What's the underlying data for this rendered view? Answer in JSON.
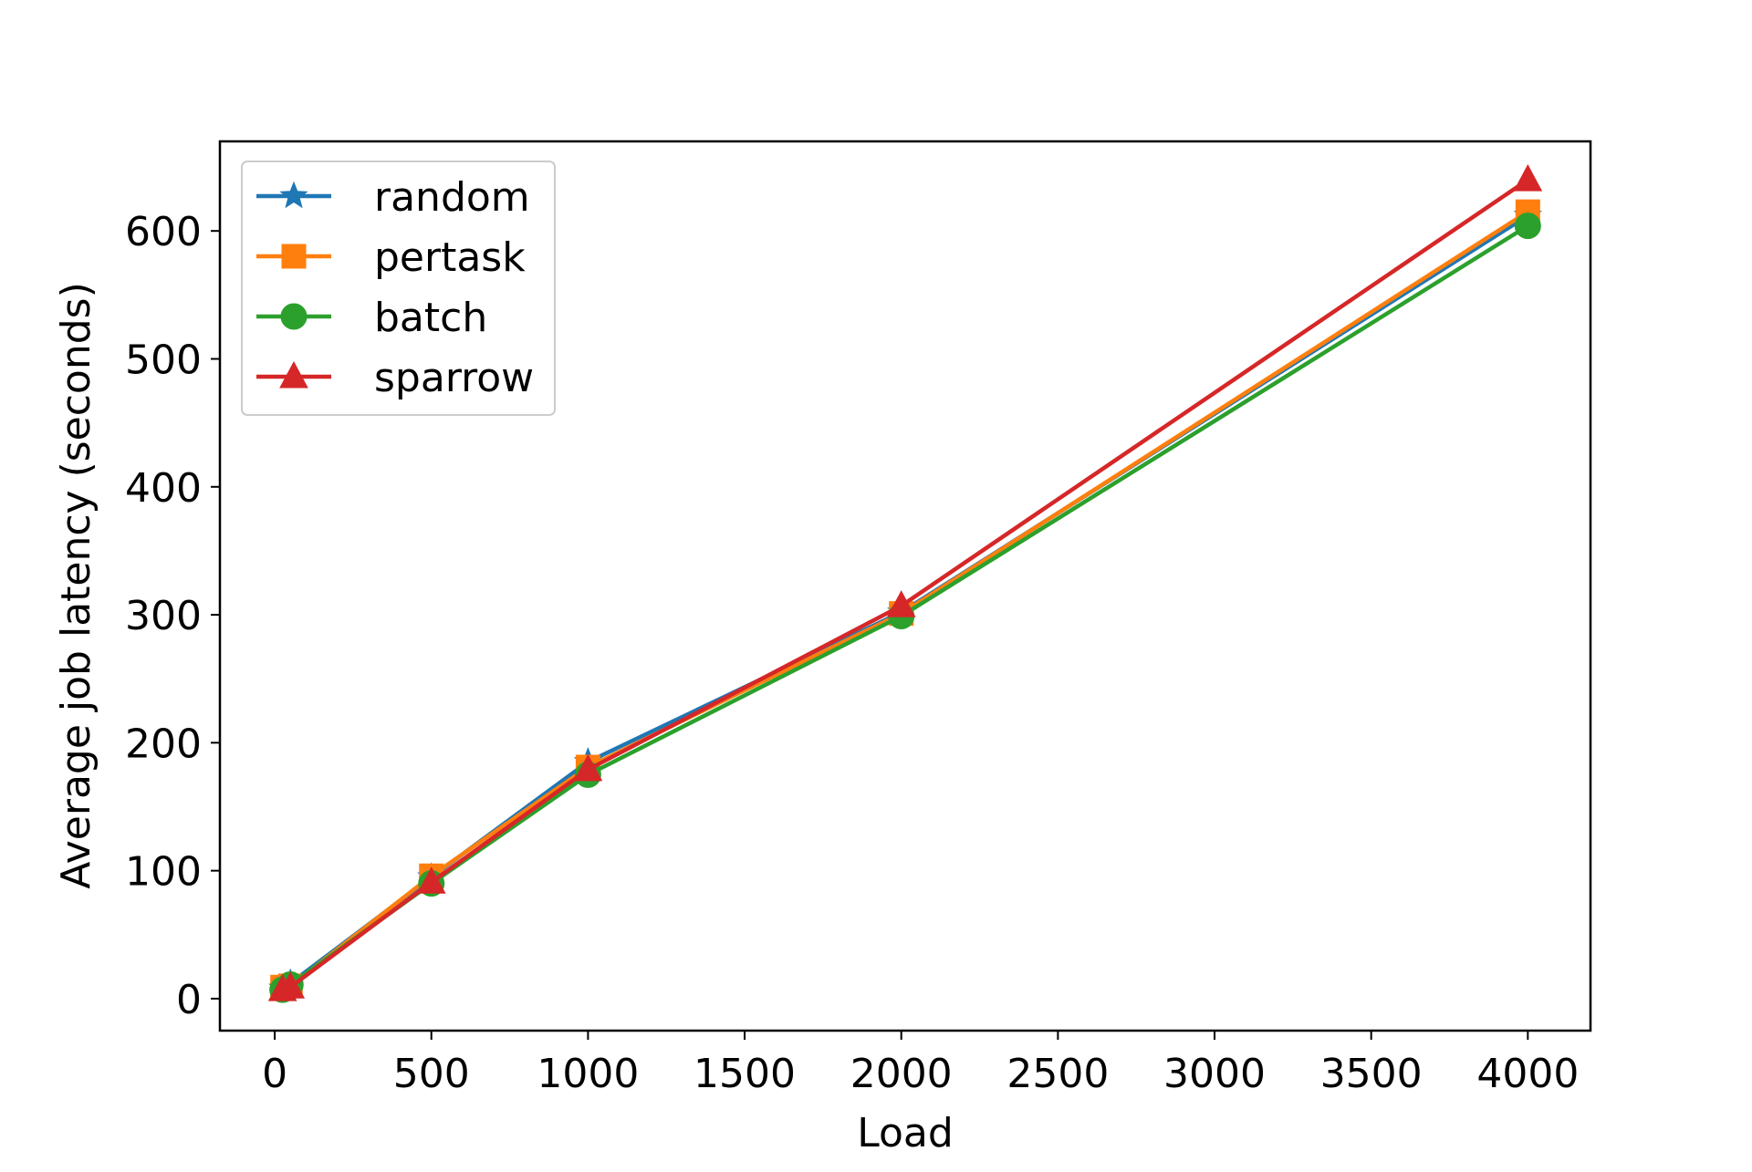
{
  "chart_data": {
    "type": "line",
    "title": "",
    "xlabel": "Load",
    "ylabel": "Average job latency (seconds)",
    "xlim": [
      -175,
      4200
    ],
    "ylim": [
      -25,
      670
    ],
    "xticks": [
      0,
      500,
      1000,
      1500,
      2000,
      2500,
      3000,
      3500,
      4000
    ],
    "yticks": [
      0,
      100,
      200,
      300,
      400,
      500,
      600
    ],
    "grid": false,
    "legend_position": "upper-left",
    "series": [
      {
        "name": "random",
        "color": "#1f77b4",
        "marker": "star",
        "x": [
          25,
          50,
          500,
          1000,
          2000,
          4000
        ],
        "y": [
          8,
          12,
          95,
          185,
          302,
          612
        ]
      },
      {
        "name": "pertask",
        "color": "#ff7f0e",
        "marker": "square",
        "x": [
          25,
          50,
          500,
          1000,
          2000,
          4000
        ],
        "y": [
          9,
          10,
          96,
          181,
          301,
          615
        ]
      },
      {
        "name": "batch",
        "color": "#2ca02c",
        "marker": "circle",
        "x": [
          25,
          50,
          500,
          1000,
          2000,
          4000
        ],
        "y": [
          7,
          11,
          90,
          175,
          299,
          604
        ]
      },
      {
        "name": "sparrow",
        "color": "#d62728",
        "marker": "triangle",
        "x": [
          25,
          50,
          500,
          1000,
          2000,
          4000
        ],
        "y": [
          7,
          9,
          91,
          179,
          307,
          640
        ]
      }
    ]
  }
}
